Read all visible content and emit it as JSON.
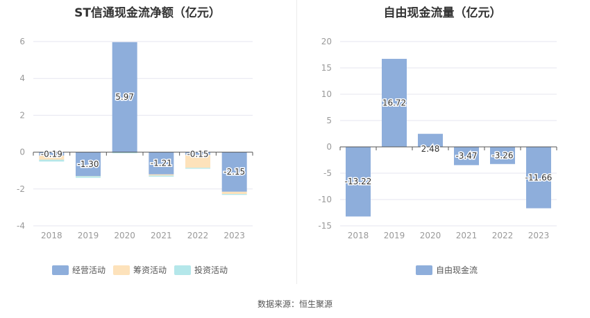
{
  "source_text": "数据来源：恒生聚源",
  "colors": {
    "operating": "#8eaedb",
    "financing": "#fde2bb",
    "investing": "#b4e7ea",
    "fcf": "#8eaedb",
    "grid": "#e6e6ef",
    "axis": "#555555"
  },
  "chart_data": [
    {
      "type": "bar",
      "stacked": true,
      "title": "ST信通现金流净额（亿元）",
      "categories": [
        "2018",
        "2019",
        "2020",
        "2021",
        "2022",
        "2023"
      ],
      "ylim": [
        -4,
        6
      ],
      "yticks": [
        -4,
        -2,
        0,
        2,
        4,
        6
      ],
      "grid": true,
      "legend_position": "bottom",
      "series": [
        {
          "name": "经营活动",
          "color_key": "operating",
          "values": [
            -0.19,
            -1.3,
            5.97,
            -1.21,
            -0.15,
            -2.15
          ],
          "labels": [
            "-0.19",
            "-1.30",
            "5.97",
            "-1.21",
            "-0.15",
            "-2.15"
          ]
        },
        {
          "name": "筹资活动",
          "color_key": "financing",
          "values": [
            -0.22,
            -0.01,
            0.0,
            -0.06,
            -0.7,
            -0.12
          ]
        },
        {
          "name": "投资活动",
          "color_key": "investing",
          "values": [
            -0.1,
            -0.08,
            -0.06,
            -0.06,
            -0.05,
            -0.05
          ]
        }
      ]
    },
    {
      "type": "bar",
      "title": "自由现金流量（亿元）",
      "categories": [
        "2018",
        "2019",
        "2020",
        "2021",
        "2022",
        "2023"
      ],
      "ylim": [
        -15,
        20
      ],
      "yticks": [
        -15,
        -10,
        -5,
        0,
        5,
        10,
        15,
        20
      ],
      "grid": true,
      "legend_position": "bottom",
      "series": [
        {
          "name": "自由现金流",
          "color_key": "fcf",
          "values": [
            -13.22,
            16.72,
            2.48,
            -3.47,
            -3.26,
            -11.66
          ],
          "labels": [
            "-13.22",
            "16.72",
            "2.48",
            "-3.47",
            "-3.26",
            "-11.66"
          ]
        }
      ]
    }
  ]
}
